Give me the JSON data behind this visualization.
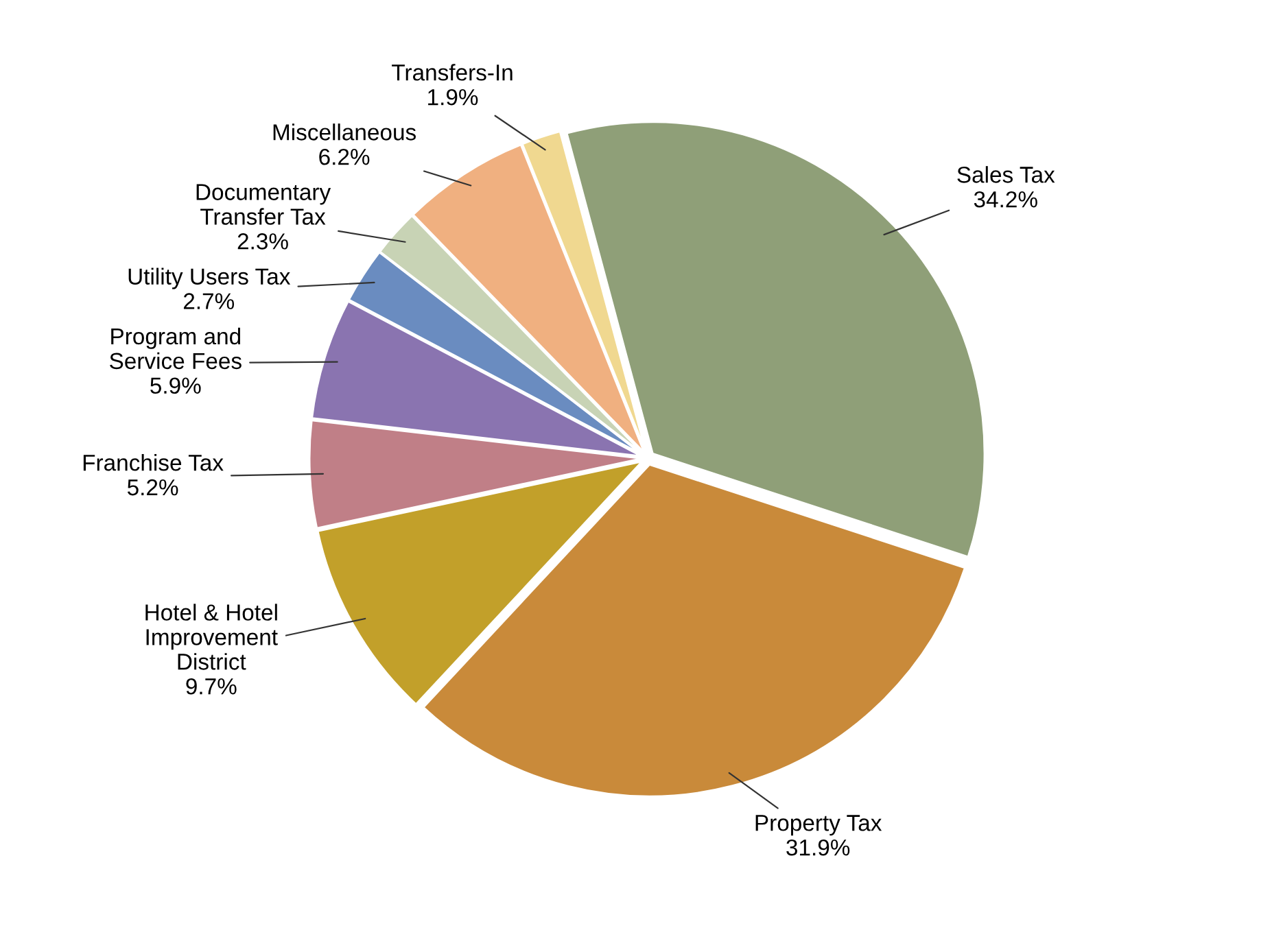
{
  "chart_data": {
    "type": "pie",
    "categories": [
      "Sales Tax",
      "Property Tax",
      "Hotel & Hotel\nImprovement\nDistrict",
      "Franchise Tax",
      "Program and\nService Fees",
      "Utility Users Tax",
      "Documentary\nTransfer Tax",
      "Miscellaneous",
      "Transfers-In"
    ],
    "values": [
      34.2,
      31.9,
      9.7,
      5.2,
      5.9,
      2.7,
      2.3,
      6.2,
      1.9
    ],
    "value_labels": [
      "34.2%",
      "31.9%",
      "9.7%",
      "5.2%",
      "5.9%",
      "2.7%",
      "2.3%",
      "6.2%",
      "1.9%"
    ],
    "colors": [
      "#8f9f78",
      "#c98a3a",
      "#c2a02a",
      "#c07f87",
      "#8a74b0",
      "#6a8cc0",
      "#c8d3b5",
      "#f0b080",
      "#f0d890"
    ],
    "legend": false
  }
}
